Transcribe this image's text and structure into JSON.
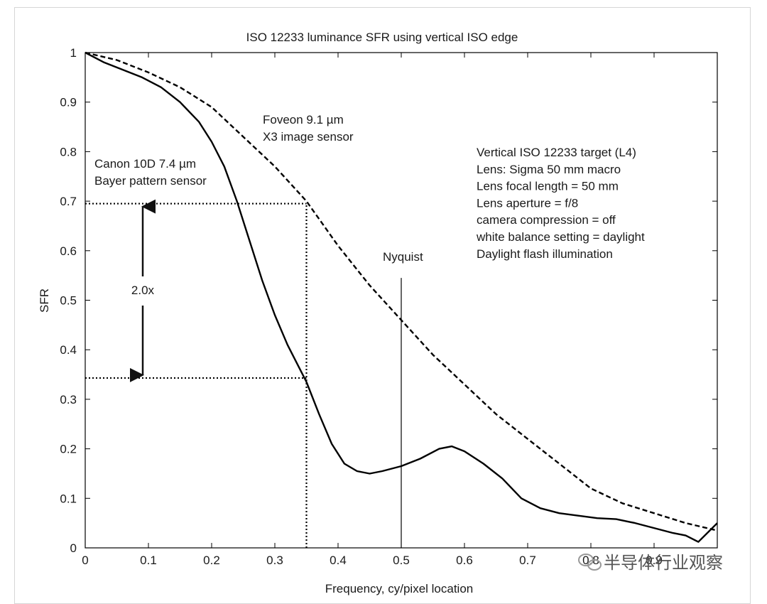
{
  "watermark": "半导体行业观察",
  "chart_data": {
    "type": "line",
    "title": "ISO 12233 luminance SFR using vertical ISO edge",
    "xlabel": "Frequency, cy/pixel location",
    "ylabel": "SFR",
    "xlim": [
      0,
      1
    ],
    "ylim": [
      0,
      1
    ],
    "x_ticks": [
      "0",
      "0.1",
      "0.2",
      "0.3",
      "0.4",
      "0.5",
      "0.6",
      "0.7",
      "0.8",
      "0.9"
    ],
    "y_ticks": [
      "0",
      "0.1",
      "0.2",
      "0.3",
      "0.4",
      "0.5",
      "0.6",
      "0.7",
      "0.8",
      "0.9",
      "1"
    ],
    "grid": false,
    "series": [
      {
        "name": "Canon 10D 7.4 µm Bayer pattern sensor",
        "style": "solid",
        "x": [
          0,
          0.03,
          0.06,
          0.09,
          0.12,
          0.15,
          0.18,
          0.2,
          0.22,
          0.24,
          0.26,
          0.28,
          0.3,
          0.32,
          0.34,
          0.35,
          0.37,
          0.39,
          0.41,
          0.43,
          0.45,
          0.47,
          0.5,
          0.53,
          0.56,
          0.58,
          0.6,
          0.63,
          0.66,
          0.69,
          0.72,
          0.75,
          0.78,
          0.81,
          0.84,
          0.87,
          0.9,
          0.93,
          0.95,
          0.97,
          1.0
        ],
        "y": [
          1.0,
          0.98,
          0.965,
          0.95,
          0.93,
          0.9,
          0.86,
          0.82,
          0.77,
          0.7,
          0.62,
          0.54,
          0.47,
          0.41,
          0.36,
          0.335,
          0.27,
          0.21,
          0.17,
          0.155,
          0.15,
          0.155,
          0.165,
          0.18,
          0.2,
          0.205,
          0.195,
          0.17,
          0.14,
          0.1,
          0.08,
          0.07,
          0.065,
          0.06,
          0.058,
          0.05,
          0.04,
          0.03,
          0.025,
          0.012,
          0.05
        ]
      },
      {
        "name": "Foveon 9.1 µm X3 image sensor",
        "style": "dashed",
        "x": [
          0,
          0.05,
          0.1,
          0.15,
          0.2,
          0.25,
          0.3,
          0.35,
          0.4,
          0.45,
          0.5,
          0.55,
          0.6,
          0.65,
          0.7,
          0.75,
          0.8,
          0.85,
          0.9,
          0.95,
          1.0
        ],
        "y": [
          1.0,
          0.985,
          0.96,
          0.93,
          0.89,
          0.83,
          0.77,
          0.7,
          0.61,
          0.53,
          0.46,
          0.39,
          0.33,
          0.27,
          0.22,
          0.17,
          0.12,
          0.09,
          0.07,
          0.05,
          0.035
        ]
      }
    ],
    "reference_lines": [
      {
        "type": "horizontal",
        "y": 0.695,
        "style": "dotted"
      },
      {
        "type": "horizontal",
        "y": 0.343,
        "style": "dotted"
      },
      {
        "type": "vertical",
        "x": 0.35,
        "style": "dotted"
      },
      {
        "type": "vertical",
        "x": 0.5,
        "y_top": 0.545,
        "style": "solid",
        "label": "Nyquist"
      }
    ],
    "annotations": {
      "canon_label": [
        "Canon 10D 7.4 µm",
        "Bayer pattern sensor"
      ],
      "foveon_label": [
        "Foveon 9.1 µm",
        "X3 image sensor"
      ],
      "ratio_label": "2.0x",
      "nyquist_label": "Nyquist",
      "info_block": [
        "Vertical ISO 12233 target (L4)",
        "Lens: Sigma 50 mm macro",
        "Lens focal length = 50 mm",
        "Lens aperture = f/8",
        "camera compression = off",
        "white balance setting = daylight",
        "Daylight flash illumination"
      ]
    }
  }
}
